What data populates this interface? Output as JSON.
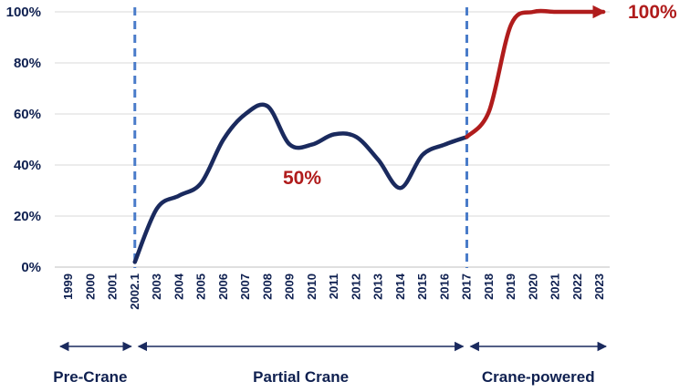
{
  "chart_data": {
    "type": "line",
    "title": "",
    "xlabel": "",
    "ylabel": "",
    "ylim": [
      0,
      100
    ],
    "y_ticks": [
      "0%",
      "20%",
      "40%",
      "60%",
      "80%",
      "100%"
    ],
    "grid": true,
    "categories": [
      "1999",
      "2000",
      "2001",
      "2002.1",
      "2003",
      "2004",
      "2005",
      "2006",
      "2007",
      "2008",
      "2009",
      "2010",
      "2011",
      "2012",
      "2013",
      "2014",
      "2015",
      "2016",
      "2017",
      "2018",
      "2019",
      "2020",
      "2021",
      "2022",
      "2023"
    ],
    "series": [
      {
        "color": "#1a2a5e",
        "x": [
          "2002.1",
          "2003",
          "2004",
          "2005",
          "2006",
          "2007",
          "2008",
          "2009",
          "2010",
          "2011",
          "2012",
          "2013",
          "2014",
          "2015",
          "2016",
          "2017"
        ],
        "values": [
          2,
          23,
          28,
          33,
          50,
          60,
          63,
          48,
          48,
          52,
          51,
          42,
          31,
          44,
          48,
          51
        ]
      },
      {
        "color": "#b01c1c",
        "x": [
          "2017",
          "2018",
          "2019",
          "2020",
          "2021",
          "2022",
          "2023"
        ],
        "values": [
          51,
          61,
          95,
          100,
          100,
          100,
          100
        ]
      }
    ],
    "vertical_lines": [
      "2002.1",
      "2017"
    ],
    "phases": [
      {
        "label": "Pre-Crane",
        "from": "1999",
        "to": "2002.1"
      },
      {
        "label": "Partial Crane",
        "from": "2002.1",
        "to": "2017"
      },
      {
        "label": "Crane-powered",
        "from": "2017",
        "to": "2023"
      }
    ],
    "annotations": [
      {
        "text": "50%",
        "color": "#b01c1c"
      },
      {
        "text": "100%",
        "color": "#b01c1c"
      }
    ]
  }
}
